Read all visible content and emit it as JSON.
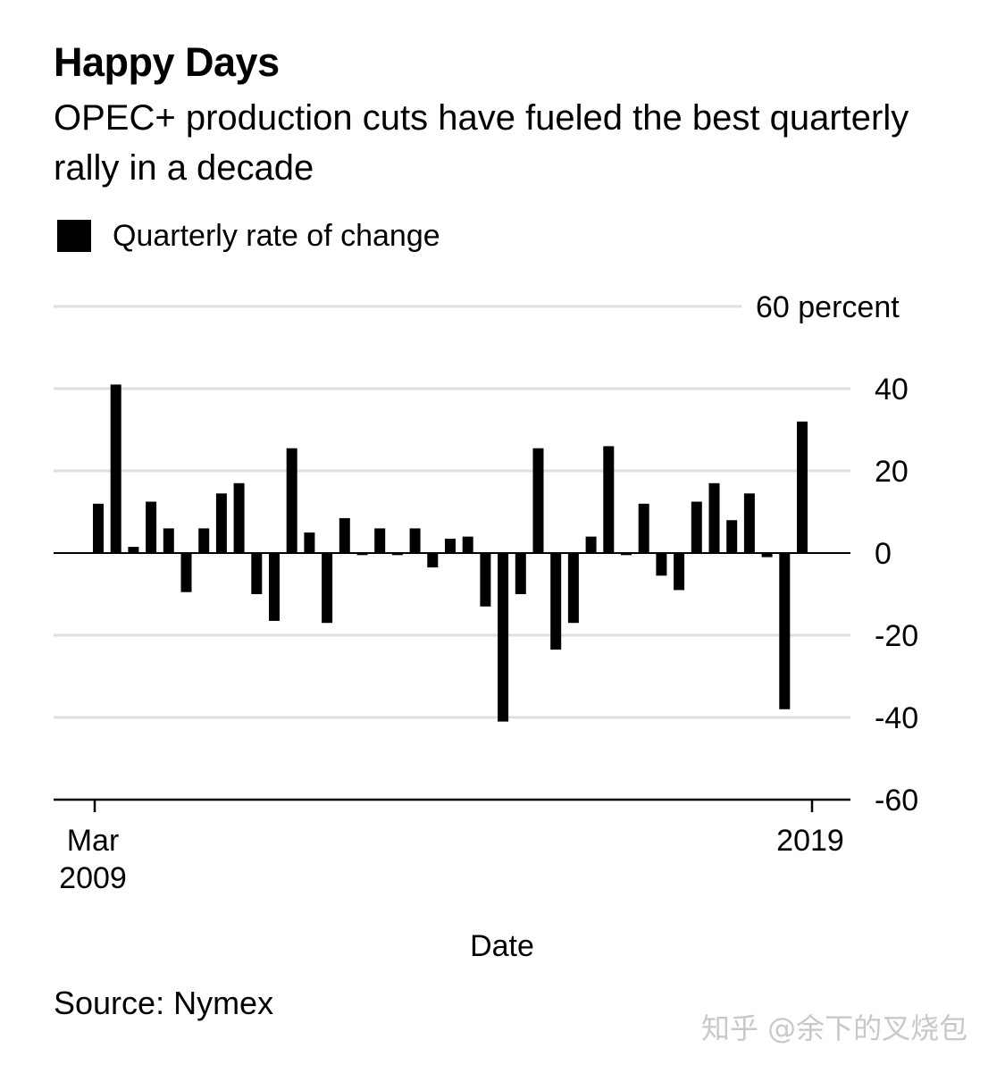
{
  "chart_data": {
    "type": "bar",
    "title": "Happy Days",
    "subtitle": "OPEC+ production cuts have fueled the best quarterly rally in a decade",
    "legend": [
      {
        "label": "Quarterly rate of change",
        "color": "#000000"
      }
    ],
    "legend_placement": "top-left",
    "xlabel": "Date",
    "ylabel": "",
    "ylim": [
      -60,
      60
    ],
    "yticks": [
      {
        "value": 60,
        "label": "60 percent"
      },
      {
        "value": 40,
        "label": "40"
      },
      {
        "value": 20,
        "label": "20"
      },
      {
        "value": 0,
        "label": "0"
      },
      {
        "value": -20,
        "label": "-20"
      },
      {
        "value": -40,
        "label": "-40"
      },
      {
        "value": -60,
        "label": "-60"
      }
    ],
    "xticks": [
      {
        "label": [
          "Mar",
          "2009"
        ],
        "index": 0
      },
      {
        "label": [
          "2019"
        ],
        "index": 40
      }
    ],
    "grid": true,
    "series": [
      {
        "name": "Quarterly rate of change",
        "color": "#000000",
        "values": [
          12,
          41,
          1.5,
          12.5,
          6,
          -9.5,
          6,
          14.5,
          17,
          -10,
          -16.5,
          25.5,
          5,
          -17,
          8.5,
          -0.5,
          6,
          -0.5,
          6,
          -3.5,
          3.5,
          4,
          -13,
          -41,
          -10,
          25.5,
          -23.5,
          -17,
          4,
          26,
          -0.5,
          12,
          -5.5,
          -9,
          12.5,
          17,
          8,
          14.5,
          -1,
          -38,
          32
        ]
      }
    ],
    "source": "Source: Nymex"
  },
  "watermark": "知乎 @余下的叉烧包"
}
